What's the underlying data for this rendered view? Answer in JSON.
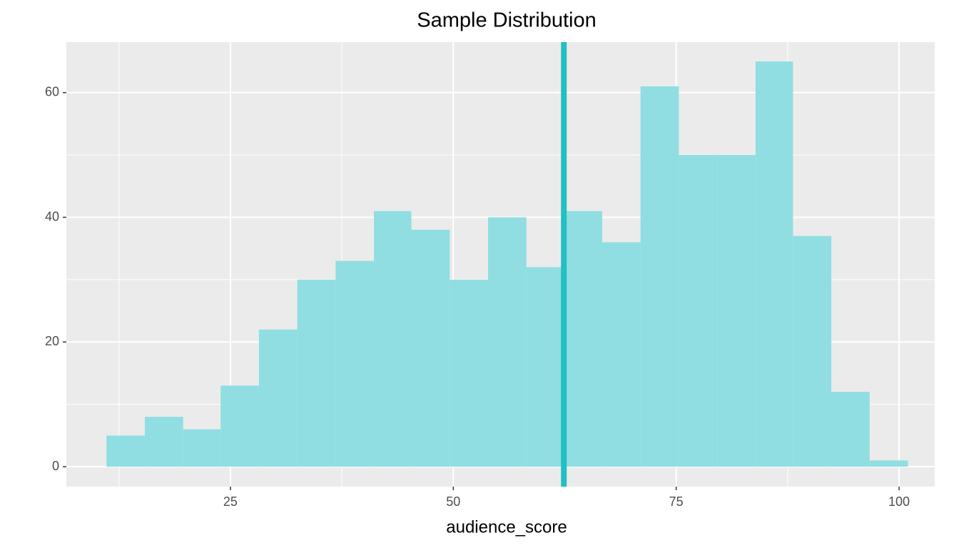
{
  "chart_data": {
    "type": "histogram",
    "title": "Sample Distribution",
    "x_label": "audience_score",
    "bins": [
      11.1,
      15.4,
      19.7,
      23.9,
      28.2,
      32.5,
      36.8,
      41.1,
      45.3,
      49.6,
      53.9,
      58.2,
      62.5,
      66.7,
      71.0,
      75.3,
      79.6,
      83.9,
      88.1,
      92.4,
      96.7,
      101.0
    ],
    "values": [
      5,
      8,
      6,
      13,
      22,
      30,
      33,
      41,
      38,
      30,
      40,
      32,
      41,
      36,
      61,
      50,
      50,
      65,
      37,
      12,
      1
    ],
    "color": "#90dee2",
    "vline": 62.4,
    "vline_color": "#22bfc4",
    "xlim": [
      6.6,
      104.0
    ],
    "xticks": [
      25,
      50,
      75,
      100
    ],
    "ylim": [
      -3.2,
      68.1
    ],
    "yticks": [
      0,
      20,
      40,
      60
    ],
    "grid": true
  }
}
